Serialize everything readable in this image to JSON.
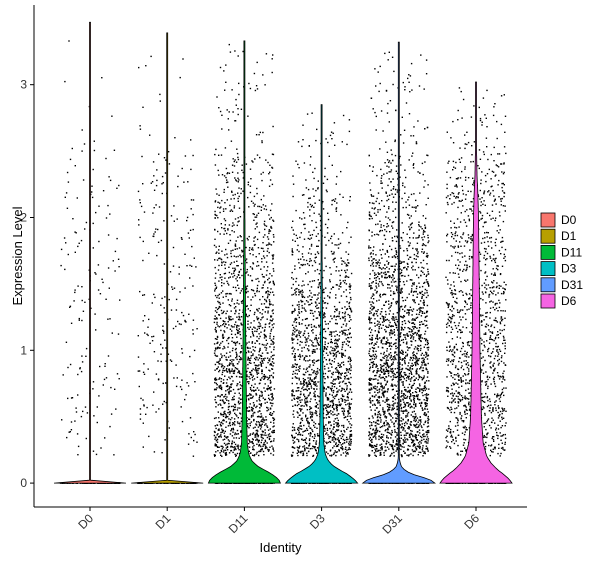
{
  "chart_data": {
    "type": "violin",
    "xlabel": "Identity",
    "ylabel": "Expression Level",
    "ylim": [
      -0.18,
      3.6
    ],
    "yticks": [
      0,
      1,
      2,
      3
    ],
    "categories": [
      "D0",
      "D1",
      "D11",
      "D3",
      "D31",
      "D6"
    ],
    "series": [
      {
        "name": "D0",
        "color": "#F8766D",
        "max": 3.47,
        "zero_fraction": 0.9,
        "point_count": 1600,
        "point_density": [
          [
            0.3,
            0.8
          ],
          [
            0.6,
            1.0
          ],
          [
            1.0,
            1.0
          ],
          [
            1.5,
            1.0
          ],
          [
            2.0,
            1.0
          ],
          [
            2.45,
            0.95
          ],
          [
            2.6,
            0.3
          ],
          [
            3.0,
            0.12
          ],
          [
            3.5,
            0.05
          ]
        ],
        "violin_density": [
          [
            0,
            1.0
          ],
          [
            0.01,
            0.0
          ],
          [
            3.47,
            0.0
          ]
        ]
      },
      {
        "name": "D1",
        "color": "#B79F00",
        "max": 3.39,
        "zero_fraction": 0.9,
        "point_count": 2300,
        "point_density": [
          [
            0.3,
            0.8
          ],
          [
            0.6,
            1.0
          ],
          [
            1.0,
            1.0
          ],
          [
            1.5,
            1.0
          ],
          [
            2.0,
            0.95
          ],
          [
            2.35,
            0.85
          ],
          [
            2.55,
            0.3
          ],
          [
            3.0,
            0.1
          ],
          [
            3.4,
            0.05
          ]
        ],
        "violin_density": [
          [
            0,
            1.0
          ],
          [
            0.01,
            0.0
          ],
          [
            3.39,
            0.0
          ]
        ]
      },
      {
        "name": "D11",
        "color": "#00BA38",
        "max": 3.33,
        "zero_fraction": 0.6,
        "point_count": 4500,
        "point_density": [
          [
            0.2,
            1.0
          ],
          [
            0.5,
            1.0
          ],
          [
            1.0,
            0.85
          ],
          [
            1.5,
            0.45
          ],
          [
            2.0,
            0.3
          ],
          [
            2.3,
            0.25
          ],
          [
            2.5,
            0.1
          ],
          [
            3.0,
            0.05
          ],
          [
            3.35,
            0.02
          ]
        ],
        "violin_density": [
          [
            0,
            1.0
          ],
          [
            0.03,
            0.95
          ],
          [
            0.07,
            0.75
          ],
          [
            0.1,
            0.55
          ],
          [
            0.13,
            0.35
          ],
          [
            0.17,
            0.2
          ],
          [
            0.22,
            0.12
          ],
          [
            0.3,
            0.08
          ],
          [
            0.5,
            0.06
          ],
          [
            1.0,
            0.04
          ],
          [
            1.5,
            0.025
          ],
          [
            2.0,
            0.015
          ],
          [
            2.3,
            0.012
          ],
          [
            2.6,
            0.006
          ],
          [
            3.0,
            0.003
          ],
          [
            3.33,
            0.0
          ]
        ]
      },
      {
        "name": "D3",
        "color": "#00BFC4",
        "max": 2.85,
        "zero_fraction": 0.6,
        "point_count": 4000,
        "point_density": [
          [
            0.2,
            1.0
          ],
          [
            0.5,
            1.0
          ],
          [
            1.0,
            0.85
          ],
          [
            1.5,
            0.4
          ],
          [
            2.0,
            0.22
          ],
          [
            2.2,
            0.15
          ],
          [
            2.5,
            0.05
          ],
          [
            2.85,
            0.02
          ]
        ],
        "violin_density": [
          [
            0,
            1.0
          ],
          [
            0.03,
            0.9
          ],
          [
            0.07,
            0.7
          ],
          [
            0.1,
            0.5
          ],
          [
            0.13,
            0.32
          ],
          [
            0.17,
            0.18
          ],
          [
            0.22,
            0.1
          ],
          [
            0.3,
            0.06
          ],
          [
            0.5,
            0.045
          ],
          [
            1.0,
            0.03
          ],
          [
            1.5,
            0.018
          ],
          [
            2.0,
            0.01
          ],
          [
            2.5,
            0.005
          ],
          [
            2.85,
            0.0
          ]
        ]
      },
      {
        "name": "D31",
        "color": "#619CFF",
        "max": 3.32,
        "zero_fraction": 0.55,
        "point_count": 5000,
        "point_density": [
          [
            0.2,
            1.0
          ],
          [
            0.5,
            1.0
          ],
          [
            1.0,
            0.95
          ],
          [
            1.5,
            0.55
          ],
          [
            2.0,
            0.3
          ],
          [
            2.3,
            0.22
          ],
          [
            2.5,
            0.1
          ],
          [
            3.0,
            0.05
          ],
          [
            3.3,
            0.02
          ]
        ],
        "violin_density": [
          [
            0,
            1.0
          ],
          [
            0.03,
            0.85
          ],
          [
            0.06,
            0.45
          ],
          [
            0.09,
            0.2
          ],
          [
            0.12,
            0.08
          ],
          [
            0.16,
            0.03
          ],
          [
            0.2,
            0.01
          ],
          [
            0.3,
            0.004
          ],
          [
            3.32,
            0.0
          ]
        ]
      },
      {
        "name": "D6",
        "color": "#F564E3",
        "max": 3.02,
        "zero_fraction": 0.45,
        "point_count": 2400,
        "point_density": [
          [
            0.2,
            1.0
          ],
          [
            0.5,
            1.0
          ],
          [
            1.0,
            1.0
          ],
          [
            1.5,
            0.8
          ],
          [
            2.0,
            0.6
          ],
          [
            2.4,
            0.4
          ],
          [
            2.6,
            0.15
          ],
          [
            3.0,
            0.05
          ]
        ],
        "violin_density": [
          [
            0,
            1.0
          ],
          [
            0.03,
            0.92
          ],
          [
            0.07,
            0.75
          ],
          [
            0.1,
            0.6
          ],
          [
            0.15,
            0.42
          ],
          [
            0.2,
            0.3
          ],
          [
            0.3,
            0.2
          ],
          [
            0.5,
            0.15
          ],
          [
            1.0,
            0.11
          ],
          [
            1.5,
            0.09
          ],
          [
            2.0,
            0.07
          ],
          [
            2.2,
            0.05
          ],
          [
            2.3,
            0.03
          ],
          [
            2.5,
            0.015
          ],
          [
            3.02,
            0.0
          ]
        ]
      }
    ],
    "legend": {
      "position": "right",
      "entries": [
        "D0",
        "D1",
        "D11",
        "D3",
        "D31",
        "D6"
      ]
    }
  }
}
